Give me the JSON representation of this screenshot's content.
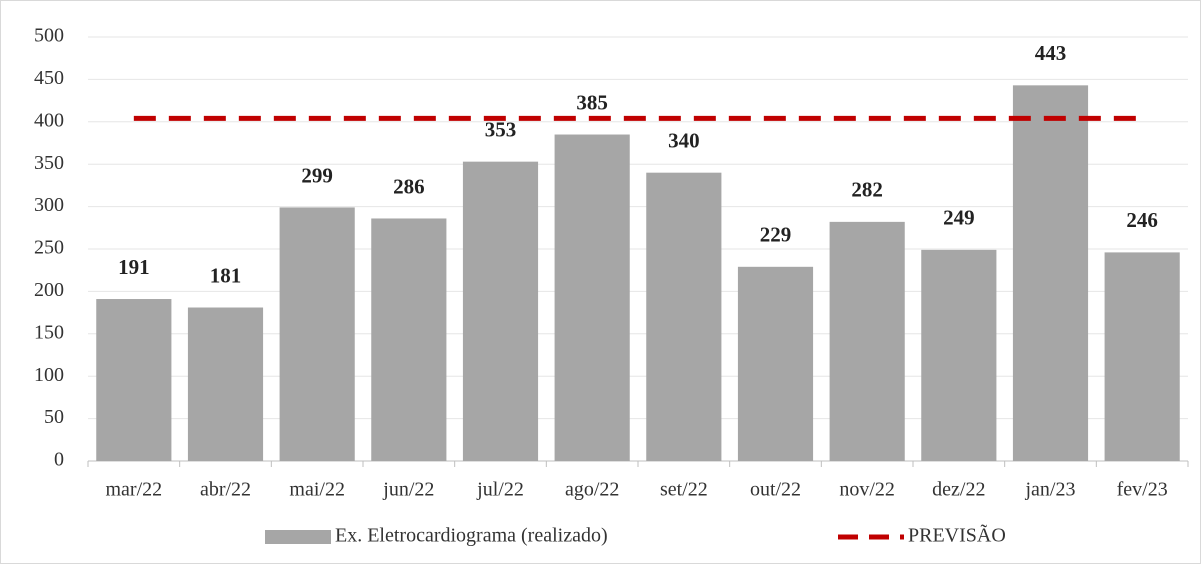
{
  "chart_data": {
    "type": "bar",
    "categories": [
      "mar/22",
      "abr/22",
      "mai/22",
      "jun/22",
      "jul/22",
      "ago/22",
      "set/22",
      "out/22",
      "nov/22",
      "dez/22",
      "jan/23",
      "fev/23"
    ],
    "series": [
      {
        "name": "Ex. Eletrocardiograma (realizado)",
        "type": "bar",
        "color": "#a6a6a6",
        "values": [
          191,
          181,
          299,
          286,
          353,
          385,
          340,
          229,
          282,
          249,
          443,
          246
        ]
      },
      {
        "name": "PREVISÃO",
        "type": "line",
        "dashed": true,
        "color": "#c00000",
        "values": [
          404,
          404,
          404,
          404,
          404,
          404,
          404,
          404,
          404,
          404,
          404,
          404
        ]
      }
    ],
    "ylim": [
      0,
      500
    ],
    "yticks": [
      0,
      50,
      100,
      150,
      200,
      250,
      300,
      350,
      400,
      450,
      500
    ],
    "grid": true,
    "legend": "bottom"
  }
}
